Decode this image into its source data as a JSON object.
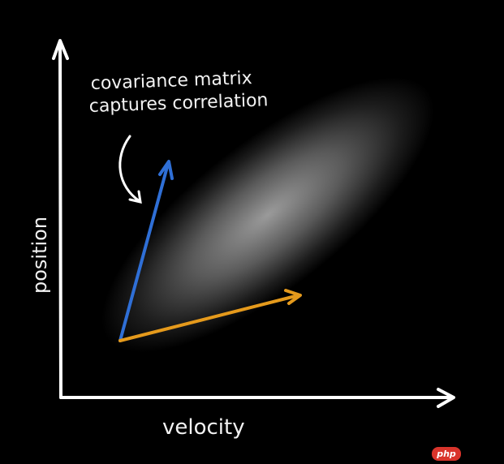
{
  "annotation": {
    "line1": "covariance matrix",
    "line2": "captures correlation"
  },
  "axes": {
    "x_label": "velocity",
    "y_label": "position"
  },
  "vectors": [
    {
      "color": "#2f6fd6"
    },
    {
      "color": "#e59a1c"
    }
  ],
  "watermark": "php"
}
